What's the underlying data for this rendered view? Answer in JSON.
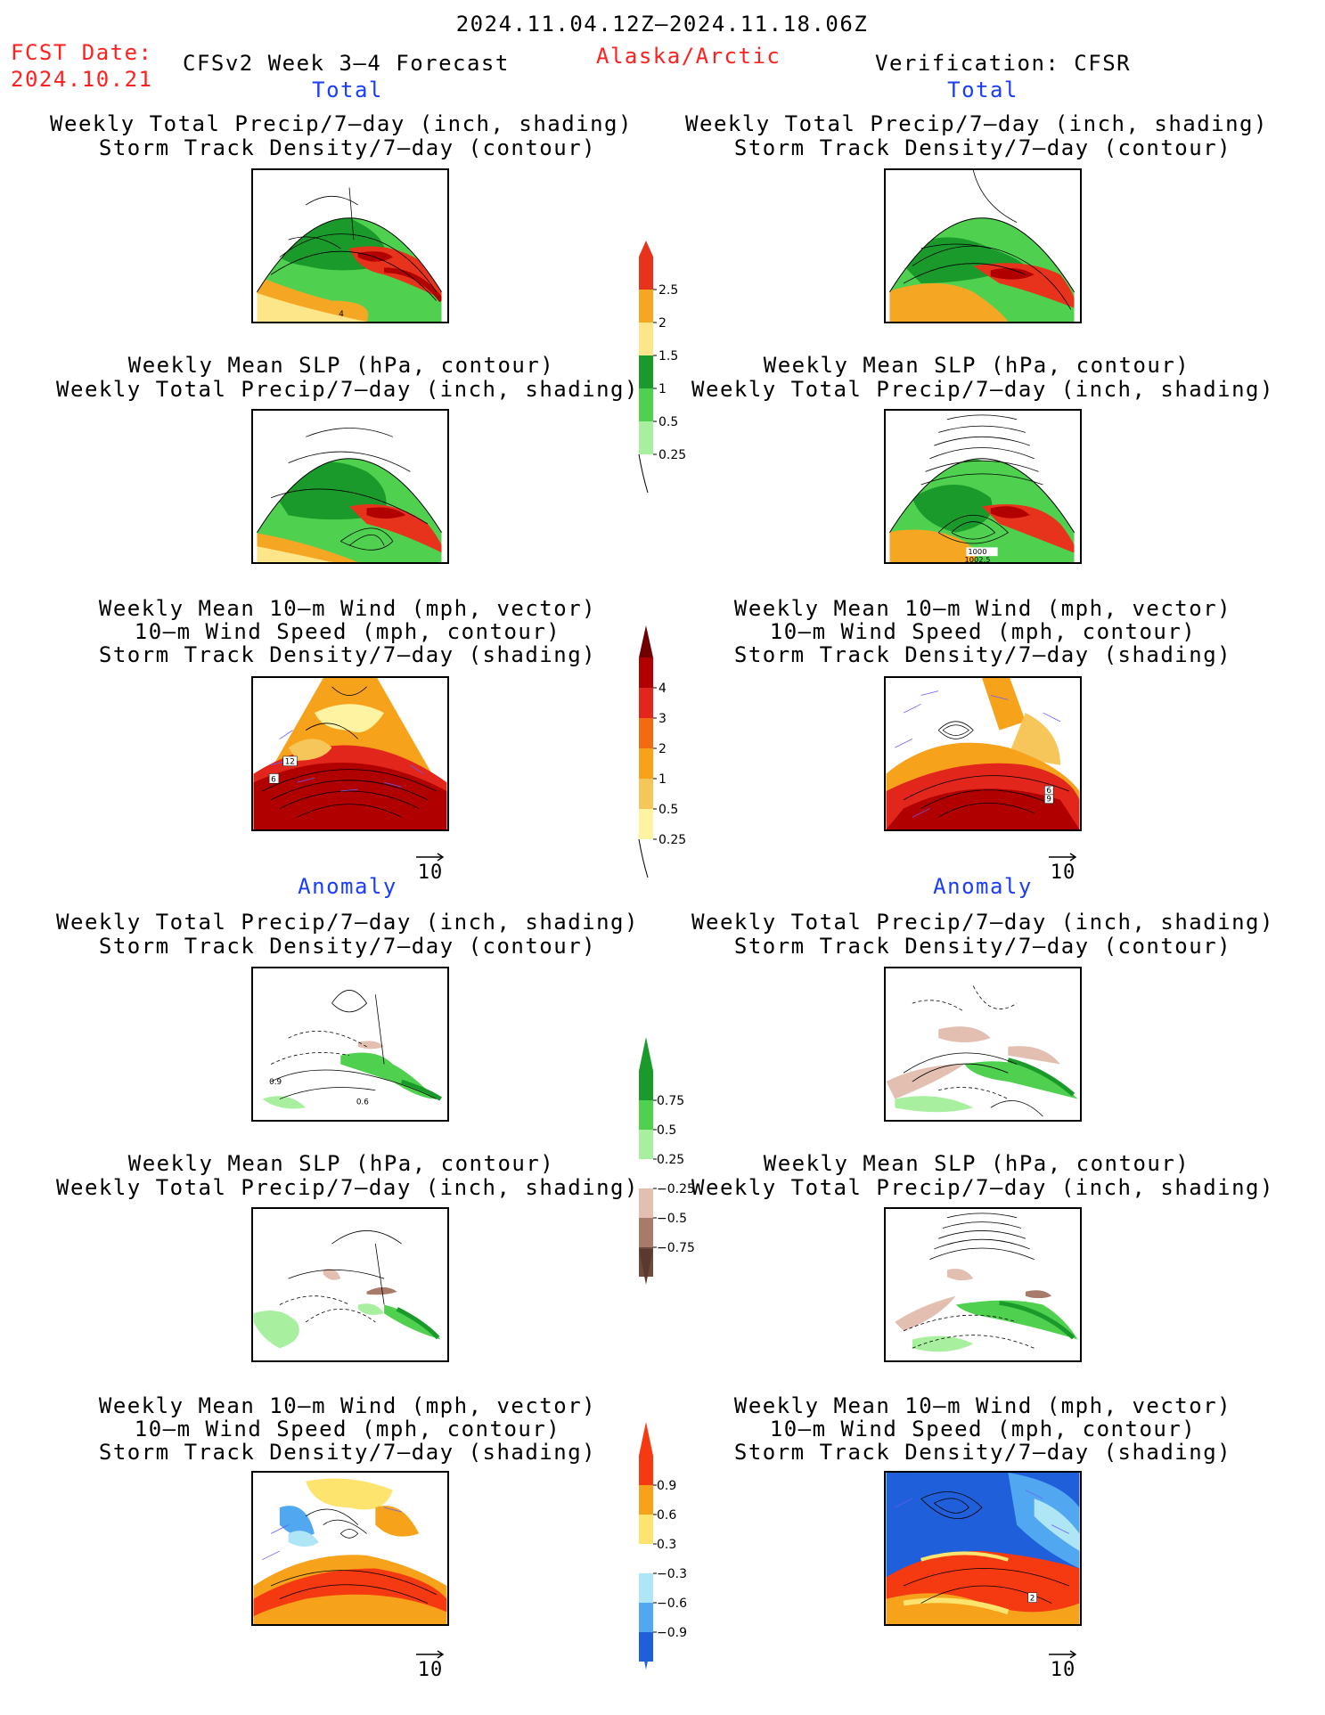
{
  "header": {
    "date_range": "2024.11.04.12Z–2024.11.18.06Z",
    "fcst_label": "FCST Date:",
    "fcst_date": "2024.10.21",
    "model_title": "CFSv2 Week 3–4 Forecast",
    "region": "Alaska/Arctic",
    "verification": "Verification: CFSR"
  },
  "sections": {
    "total_left": "Total",
    "total_right": "Total",
    "anomaly_left": "Anomaly",
    "anomaly_right": "Anomaly"
  },
  "panel_titles": {
    "precip_storm": [
      "Weekly Total Precip/7–day (inch, shading)",
      "Storm Track Density/7–day (contour)"
    ],
    "slp_precip": [
      "Weekly Mean SLP (hPa, contour)",
      "Weekly Total Precip/7–day (inch, shading)"
    ],
    "wind_storm": [
      "Weekly Mean 10–m Wind (mph, vector)",
      "10–m Wind Speed (mph, contour)",
      "Storm Track Density/7–day (shading)"
    ]
  },
  "vector_scale": "10",
  "contour_labels": {
    "p1l": "4",
    "p2r_a": "1000",
    "p2r_b": "1002.5",
    "p3l_a": "12",
    "p3l_b": "6",
    "p3r_a": "6",
    "p3r_b": "9",
    "p4l_a": "0.9",
    "p4l_b": "0.6",
    "p6r": "2"
  },
  "colorbars": {
    "precip_total": {
      "labels": [
        "2.5",
        "2",
        "1.5",
        "1",
        "0.5",
        "0.25"
      ],
      "colors": [
        "#e8331c",
        "#f5a623",
        "#fde68a",
        "#1a9a2b",
        "#4fd14f",
        "#a8f0a0"
      ]
    },
    "storm_total": {
      "labels": [
        "4",
        "3",
        "2",
        "1",
        "0.5",
        "0.25"
      ],
      "colors": [
        "#b00000",
        "#e2261b",
        "#f26a12",
        "#f7a21b",
        "#f7c65a",
        "#fdf3a0"
      ]
    },
    "precip_anom": {
      "labels": [
        "0.75",
        "0.5",
        "0.25",
        "−0.25",
        "−0.5",
        "−0.75"
      ],
      "colors_pos": [
        "#1a9a2b",
        "#4fd14f",
        "#a8f0a0"
      ],
      "colors_neg": [
        "#e2bfb0",
        "#a87a6a",
        "#6e4a3c"
      ]
    },
    "storm_anom": {
      "labels": [
        "0.9",
        "0.6",
        "0.3",
        "−0.3",
        "−0.6",
        "−0.9"
      ],
      "colors_pos": [
        "#f53a12",
        "#f7a21b",
        "#fde46e"
      ],
      "colors_neg": [
        "#aee6f5",
        "#52a8f0",
        "#1f5fd9"
      ]
    }
  }
}
